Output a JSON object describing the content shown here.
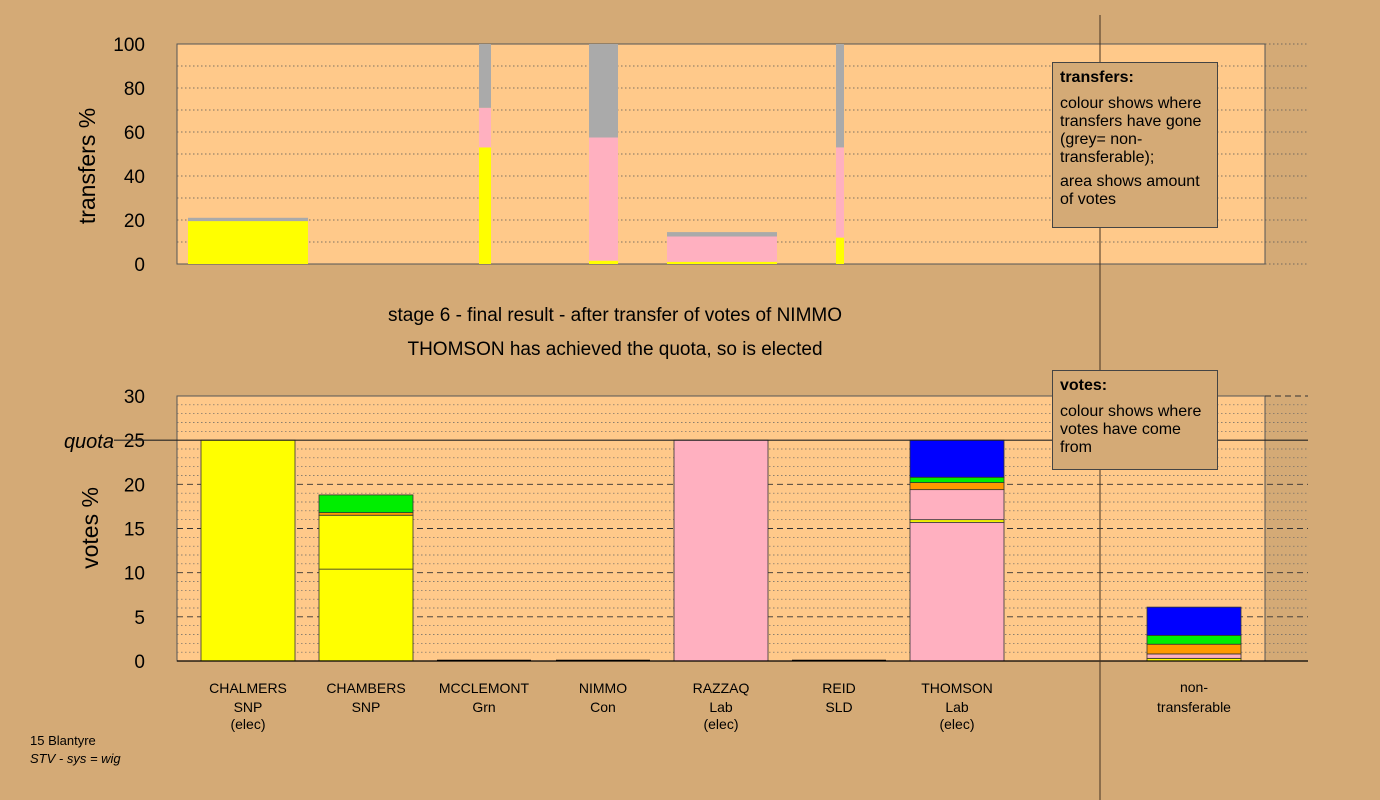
{
  "colors": {
    "background": "#d4aa76",
    "plot_bg": "#ffc98a",
    "SNP": "#ffff00",
    "Grn": "#00ee00",
    "Con": "#0000ff",
    "Lab": "#ffb0c0",
    "SLD": "#ff9900",
    "non_transferable": "#aaaaaa"
  },
  "title": {
    "line1": "stage 6 - final result - after transfer of votes of NIMMO",
    "line2": "THOMSON has achieved the quota, so is elected"
  },
  "legend_transfers": {
    "title": "transfers:",
    "text1": "colour shows where transfers have gone (grey= non-transferable);",
    "text2": "area shows amount of votes"
  },
  "legend_votes": {
    "title": "votes:",
    "text1": "colour shows where votes have come from"
  },
  "footer": {
    "ward": "15 Blantyre",
    "system": "STV - sys = wig"
  },
  "chart_data": [
    {
      "type": "bar",
      "name": "transfers",
      "ylabel": "transfers %",
      "ylim": [
        0,
        100
      ],
      "yticks": [
        "0",
        "20",
        "40",
        "60",
        "80",
        "100"
      ],
      "bars": [
        {
          "segments": [
            {
              "color": "SNP",
              "value": 19.5
            },
            {
              "color": "non_transferable",
              "value": 1.5
            }
          ]
        },
        {
          "segments": [
            {
              "color": "SNP",
              "value": 53
            },
            {
              "color": "Lab",
              "value": 18
            },
            {
              "color": "non_transferable",
              "value": 29
            }
          ]
        },
        {
          "segments": [
            {
              "color": "SNP",
              "value": 1.5
            },
            {
              "color": "Lab",
              "value": 56
            },
            {
              "color": "non_transferable",
              "value": 42.5
            }
          ]
        },
        {
          "segments": [
            {
              "color": "SNP",
              "value": 1
            },
            {
              "color": "Lab",
              "value": 11.5
            },
            {
              "color": "non_transferable",
              "value": 2
            }
          ]
        },
        {
          "segments": [
            {
              "color": "SNP",
              "value": 12
            },
            {
              "color": "Lab",
              "value": 41
            },
            {
              "color": "non_transferable",
              "value": 47
            }
          ]
        }
      ]
    },
    {
      "type": "bar",
      "name": "votes",
      "ylabel": "votes %",
      "ylim": [
        0,
        30
      ],
      "yticks": [
        "0",
        "5",
        "10",
        "15",
        "20",
        "25",
        "30"
      ],
      "quota": 25,
      "quota_label": "quota",
      "candidates": [
        {
          "name": "CHALMERS",
          "party": "SNP",
          "status": "(elec)",
          "segments": [
            {
              "color": "SNP",
              "value": 25
            }
          ]
        },
        {
          "name": "CHAMBERS",
          "party": "SNP",
          "status": "",
          "segments": [
            {
              "color": "SNP",
              "value": 10.4
            },
            {
              "color": "SNP",
              "value": 6.1
            },
            {
              "color": "SLD",
              "value": 0.3
            },
            {
              "color": "Grn",
              "value": 2.0
            }
          ]
        },
        {
          "name": "MCCLEMONT",
          "party": "Grn",
          "status": "",
          "segments": []
        },
        {
          "name": "NIMMO",
          "party": "Con",
          "status": "",
          "segments": []
        },
        {
          "name": "RAZZAQ",
          "party": "Lab",
          "status": "(elec)",
          "segments": [
            {
              "color": "Lab",
              "value": 25
            }
          ]
        },
        {
          "name": "REID",
          "party": "SLD",
          "status": "",
          "segments": []
        },
        {
          "name": "THOMSON",
          "party": "Lab",
          "status": "(elec)",
          "segments": [
            {
              "color": "Lab",
              "value": 15.7
            },
            {
              "color": "SNP",
              "value": 0.3
            },
            {
              "color": "Lab",
              "value": 3.4
            },
            {
              "color": "SLD",
              "value": 0.8
            },
            {
              "color": "Grn",
              "value": 0.6
            },
            {
              "color": "Con",
              "value": 4.2
            }
          ]
        }
      ],
      "non_transferable": {
        "label_line1": "non-",
        "label_line2": "transferable",
        "segments": [
          {
            "color": "SNP",
            "value": 0.3
          },
          {
            "color": "Lab",
            "value": 0.5
          },
          {
            "color": "SLD",
            "value": 1.1
          },
          {
            "color": "Grn",
            "value": 1.0
          },
          {
            "color": "Con",
            "value": 3.2
          }
        ]
      }
    }
  ]
}
